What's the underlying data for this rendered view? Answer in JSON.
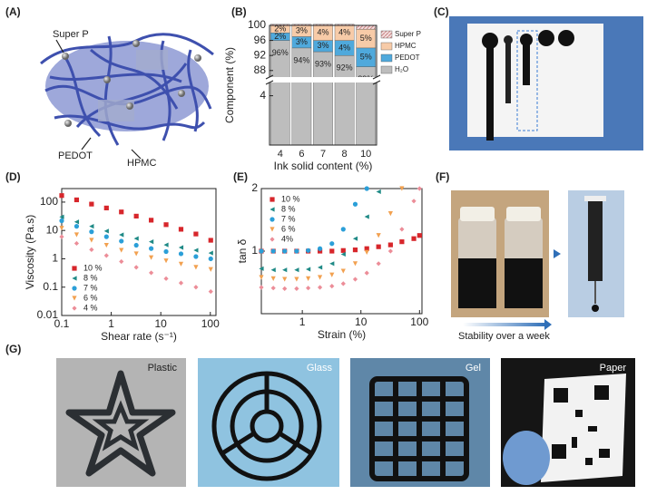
{
  "chart_data": [
    {
      "type": "bar",
      "panel": "(B)",
      "xlabel": "Ink solid content (%)",
      "ylabel": "Component (%)",
      "categories": [
        "4",
        "6",
        "7",
        "8",
        "10"
      ],
      "series": [
        {
          "name": "H₂O",
          "color": "#bdbdbd",
          "values": [
            96,
            94,
            93,
            92,
            89
          ],
          "value_labels": [
            "96%",
            "94%",
            "93%",
            "92%",
            "89%"
          ]
        },
        {
          "name": "PEDOT",
          "color": "#4fa9dc",
          "values": [
            2,
            3,
            3,
            4,
            5
          ],
          "value_labels": [
            "2%",
            "3%",
            "3%",
            "4%",
            "5%"
          ]
        },
        {
          "name": "HPMC",
          "color": "#f7cba8",
          "values": [
            2,
            3,
            4,
            4,
            5
          ],
          "value_labels": [
            "2%",
            "3%",
            "4%",
            "4%",
            "5%"
          ]
        },
        {
          "name": "Super P",
          "color": "#c98585",
          "hatch": true,
          "values": [
            0.3,
            0.3,
            0.3,
            0.3,
            1
          ]
        }
      ],
      "ylim": [
        0,
        100
      ],
      "y_break": [
        5,
        86.5
      ],
      "yticks": [
        4,
        88,
        92,
        96,
        100
      ]
    },
    {
      "type": "scatter",
      "panel": "(D)",
      "xlabel": "Shear rate (s⁻¹)",
      "ylabel": "Viscosity (Pa.s)",
      "xlog": true,
      "ylog": true,
      "x": [
        0.1,
        0.2,
        0.4,
        0.8,
        1.6,
        3.2,
        6.4,
        12.8,
        25.6,
        51.2,
        102
      ],
      "series": [
        {
          "name": "10 %",
          "color": "#d7262b",
          "marker": "square",
          "values": [
            170,
            120,
            85,
            62,
            45,
            32,
            23,
            16,
            11,
            7.5,
            4.5
          ]
        },
        {
          "name": "8 %",
          "color": "#1f8a86",
          "marker": "triangle-left",
          "values": [
            30,
            20,
            14,
            9.5,
            7,
            5.2,
            4,
            3.1,
            2.5,
            2,
            1.6
          ]
        },
        {
          "name": "7 %",
          "color": "#2b9fd8",
          "marker": "circle",
          "values": [
            22,
            14,
            9,
            6,
            4.2,
            3,
            2.3,
            1.8,
            1.5,
            1.2,
            1.0
          ]
        },
        {
          "name": "6 %",
          "color": "#f2a150",
          "marker": "triangle-down",
          "values": [
            12,
            7,
            4.5,
            3,
            2,
            1.5,
            1.1,
            0.85,
            0.65,
            0.5,
            0.42
          ]
        },
        {
          "name": "4 %",
          "color": "#ec8d98",
          "marker": "diamond",
          "values": [
            6,
            3.5,
            2.1,
            1.3,
            0.8,
            0.5,
            0.32,
            0.2,
            0.14,
            0.1,
            0.07
          ]
        }
      ],
      "xlim": [
        0.1,
        130
      ],
      "ylim": [
        0.01,
        300
      ],
      "xticks": [
        0.1,
        1,
        10,
        100
      ],
      "yticks": [
        0.01,
        0.1,
        1,
        10,
        100
      ]
    },
    {
      "type": "scatter",
      "panel": "(E)",
      "xlabel": "Strain (%)",
      "ylabel": "tan δ",
      "xlog": true,
      "ylog": false,
      "x": [
        0.2,
        0.32,
        0.5,
        0.8,
        1.26,
        2,
        3.2,
        5,
        8,
        12.6,
        20,
        32,
        50,
        80,
        100
      ],
      "series": [
        {
          "name": "10 %",
          "color": "#d7262b",
          "marker": "square",
          "values": [
            1.0,
            1.0,
            1.0,
            1.0,
            1.0,
            1.0,
            1.0,
            1.01,
            1.02,
            1.04,
            1.07,
            1.1,
            1.15,
            1.2,
            1.25
          ]
        },
        {
          "name": "8 %",
          "color": "#1f8a86",
          "marker": "triangle-left",
          "values": [
            0.72,
            0.7,
            0.7,
            0.7,
            0.71,
            0.74,
            0.8,
            0.95,
            1.2,
            1.55,
            1.95,
            null,
            null,
            null,
            null
          ]
        },
        {
          "name": "7 %",
          "color": "#2b9fd8",
          "marker": "circle",
          "values": [
            1.0,
            1.0,
            1.0,
            1.0,
            1.01,
            1.04,
            1.12,
            1.35,
            1.75,
            2.0,
            null,
            null,
            null,
            null,
            null
          ]
        },
        {
          "name": "6 %",
          "color": "#f2a150",
          "marker": "triangle-down",
          "values": [
            0.58,
            0.56,
            0.55,
            0.55,
            0.56,
            0.58,
            0.62,
            0.68,
            0.8,
            0.98,
            1.25,
            1.6,
            2.0,
            null,
            null
          ]
        },
        {
          "name": "4%",
          "color": "#ec8d98",
          "marker": "diamond",
          "values": [
            0.42,
            0.41,
            0.4,
            0.4,
            0.41,
            0.42,
            0.44,
            0.48,
            0.55,
            0.65,
            0.8,
            1.0,
            1.35,
            1.8,
            2.0
          ]
        }
      ],
      "xlim": [
        0.2,
        110
      ],
      "ylim": [
        0,
        2
      ],
      "xticks": [
        1,
        10,
        100
      ],
      "yticks": [
        1,
        2
      ]
    }
  ],
  "panels": {
    "a": {
      "label": "(A)",
      "annotations": [
        "Super P",
        "PEDOT",
        "HPMC"
      ]
    },
    "c": {
      "label": "(C)"
    },
    "f": {
      "label": "(F)",
      "caption": "Stability over a week"
    },
    "g": {
      "label": "(G)",
      "substrates": [
        "Plastic",
        "Glass",
        "Gel",
        "Paper"
      ]
    }
  }
}
